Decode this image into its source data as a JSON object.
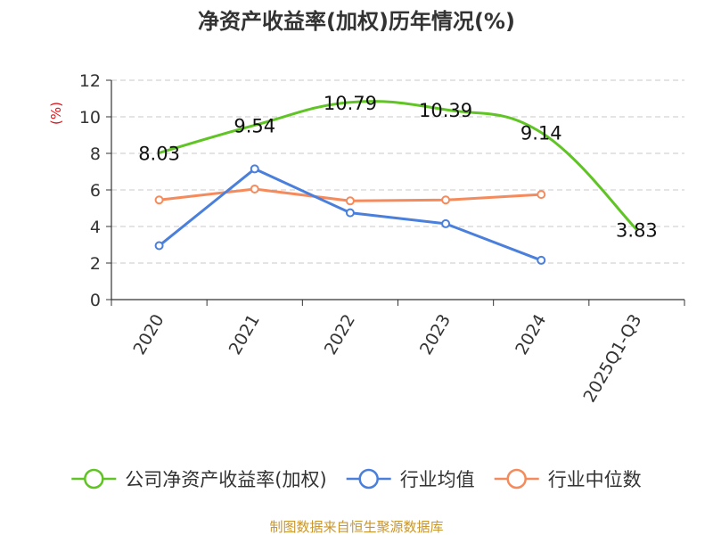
{
  "chart_data": {
    "type": "line",
    "title": "净资产收益率(加权)历年情况(%)",
    "ylabel": "(%)",
    "xlabel": "",
    "categories": [
      "2020",
      "2021",
      "2022",
      "2023",
      "2024",
      "2025Q1-Q3"
    ],
    "ylim": [
      0,
      12
    ],
    "yticks": [
      0,
      2,
      4,
      6,
      8,
      10,
      12
    ],
    "grid": true,
    "legend_position": "bottom",
    "series": [
      {
        "name": "公司净资产收益率(加权)",
        "color": "#5fc424",
        "values": [
          8.03,
          9.54,
          10.79,
          10.39,
          9.14,
          3.83
        ],
        "labels": [
          "8.03",
          "9.54",
          "10.79",
          "10.39",
          "9.14",
          "3.83"
        ],
        "show_markers": false,
        "show_labels": true
      },
      {
        "name": "行业均值",
        "color": "#4a7fdc",
        "values": [
          2.95,
          7.15,
          4.75,
          4.15,
          2.15,
          null
        ],
        "show_markers": true,
        "show_labels": false
      },
      {
        "name": "行业中位数",
        "color": "#f58b5c",
        "values": [
          5.45,
          6.05,
          5.4,
          5.45,
          5.75,
          null
        ],
        "show_markers": true,
        "show_labels": false
      }
    ]
  },
  "source": "制图数据来自恒生聚源数据库"
}
